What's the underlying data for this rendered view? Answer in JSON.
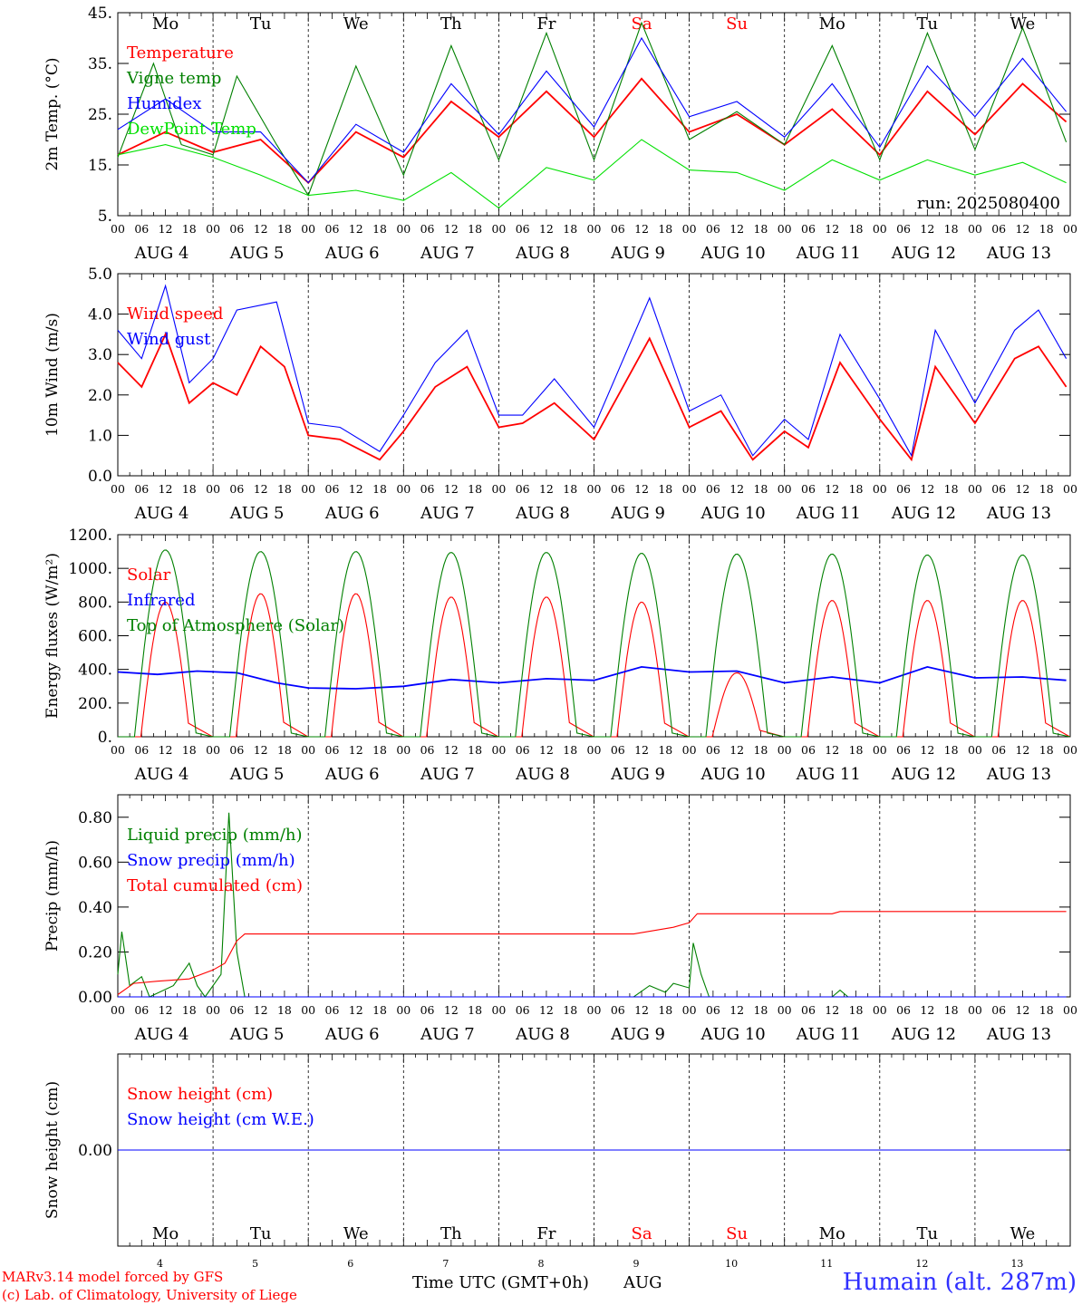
{
  "footer": {
    "model": "MARv3.14 model forced by GFS",
    "copyright": "(c) Lab. of Climatology, University of Liege",
    "time_axis": "Time UTC (GMT+0h)",
    "month": "AUG",
    "station": "Humain (alt. 287m)"
  },
  "colors": {
    "red": "#ff0000",
    "blue": "#0000ff",
    "green": "#008000",
    "lightgreen": "#00e000"
  },
  "hour_labels": [
    "00",
    "06",
    "12",
    "18"
  ],
  "date_labels": [
    "AUG  4",
    "AUG  5",
    "AUG  6",
    "AUG  7",
    "AUG  8",
    "AUG  9",
    "AUG 10",
    "AUG 11",
    "AUG 12",
    "AUG 13"
  ],
  "day_numbers": [
    "4",
    "5",
    "6",
    "7",
    "8",
    "9",
    "10",
    "11",
    "12",
    "13"
  ],
  "weekdays": [
    {
      "label": "Mo",
      "weekend": false
    },
    {
      "label": "Tu",
      "weekend": false
    },
    {
      "label": "We",
      "weekend": false
    },
    {
      "label": "Th",
      "weekend": false
    },
    {
      "label": "Fr",
      "weekend": false
    },
    {
      "label": "Sa",
      "weekend": true
    },
    {
      "label": "Su",
      "weekend": true
    },
    {
      "label": "Mo",
      "weekend": false
    },
    {
      "label": "Tu",
      "weekend": false
    },
    {
      "label": "We",
      "weekend": false
    }
  ],
  "chart_data": [
    {
      "type": "line",
      "ylabel": "2m Temp. (°C)",
      "ylim": [
        5,
        45
      ],
      "yticks": [
        "5.",
        "15.",
        "25.",
        "35.",
        "45."
      ],
      "yvals": [
        5,
        15,
        25,
        35,
        45
      ],
      "annotation": "run: 2025080400",
      "series": [
        {
          "name": "Temperature",
          "color": "#ff0000",
          "points": [
            [
              0,
              17
            ],
            [
              12,
              21.5
            ],
            [
              24,
              17.5
            ],
            [
              36,
              20
            ],
            [
              48,
              11.5
            ],
            [
              60,
              21.5
            ],
            [
              72,
              16.5
            ],
            [
              84,
              27.5
            ],
            [
              96,
              20.5
            ],
            [
              108,
              29.5
            ],
            [
              120,
              20.5
            ],
            [
              132,
              32
            ],
            [
              144,
              21.5
            ],
            [
              156,
              25
            ],
            [
              168,
              19
            ],
            [
              180,
              26
            ],
            [
              192,
              17
            ],
            [
              204,
              29.5
            ],
            [
              216,
              21
            ],
            [
              228,
              31
            ],
            [
              239,
              23.5
            ]
          ]
        },
        {
          "name": "Vigne temp",
          "color": "#008000",
          "points": [
            [
              0,
              16.5
            ],
            [
              9,
              35
            ],
            [
              16,
              19
            ],
            [
              24,
              17
            ],
            [
              30,
              32.5
            ],
            [
              40,
              19
            ],
            [
              48,
              9
            ],
            [
              60,
              34.5
            ],
            [
              72,
              13
            ],
            [
              84,
              38.5
            ],
            [
              96,
              16
            ],
            [
              108,
              41
            ],
            [
              120,
              16
            ],
            [
              132,
              43
            ],
            [
              144,
              20
            ],
            [
              156,
              25.5
            ],
            [
              168,
              19
            ],
            [
              180,
              38.5
            ],
            [
              192,
              16
            ],
            [
              204,
              41
            ],
            [
              216,
              18
            ],
            [
              228,
              42
            ],
            [
              239,
              19.5
            ]
          ]
        },
        {
          "name": "Humidex",
          "color": "#0000ff",
          "points": [
            [
              0,
              22
            ],
            [
              12,
              28
            ],
            [
              24,
              21.5
            ],
            [
              36,
              21.5
            ],
            [
              48,
              11.5
            ],
            [
              60,
              23
            ],
            [
              72,
              17.5
            ],
            [
              84,
              31
            ],
            [
              96,
              21
            ],
            [
              108,
              33.5
            ],
            [
              120,
              22.5
            ],
            [
              132,
              40
            ],
            [
              144,
              24.5
            ],
            [
              156,
              27.5
            ],
            [
              168,
              20.5
            ],
            [
              180,
              31
            ],
            [
              192,
              18.5
            ],
            [
              204,
              34.5
            ],
            [
              216,
              24.5
            ],
            [
              228,
              36
            ],
            [
              239,
              25.5
            ]
          ]
        },
        {
          "name": "DewPoint Temp",
          "color": "#00e000",
          "points": [
            [
              0,
              17
            ],
            [
              12,
              19
            ],
            [
              24,
              16.5
            ],
            [
              36,
              13
            ],
            [
              48,
              9
            ],
            [
              60,
              10
            ],
            [
              72,
              8
            ],
            [
              84,
              13.5
            ],
            [
              96,
              6.5
            ],
            [
              108,
              14.5
            ],
            [
              120,
              12
            ],
            [
              132,
              20
            ],
            [
              144,
              14
            ],
            [
              156,
              13.5
            ],
            [
              168,
              10
            ],
            [
              180,
              16
            ],
            [
              192,
              12
            ],
            [
              204,
              16
            ],
            [
              216,
              13
            ],
            [
              228,
              15.5
            ],
            [
              239,
              11.5
            ]
          ]
        }
      ]
    },
    {
      "type": "line",
      "ylabel": "10m Wind (m/s)",
      "ylim": [
        0,
        5
      ],
      "yticks": [
        "0.0",
        "1.0",
        "2.0",
        "3.0",
        "4.0",
        "5.0"
      ],
      "yvals": [
        0,
        1,
        2,
        3,
        4,
        5
      ],
      "series": [
        {
          "name": "Wind speed",
          "color": "#ff0000",
          "points": [
            [
              0,
              2.8
            ],
            [
              6,
              2.2
            ],
            [
              12,
              3.5
            ],
            [
              18,
              1.8
            ],
            [
              24,
              2.3
            ],
            [
              30,
              2
            ],
            [
              36,
              3.2
            ],
            [
              42,
              2.7
            ],
            [
              48,
              1
            ],
            [
              56,
              0.9
            ],
            [
              66,
              0.4
            ],
            [
              72,
              1.1
            ],
            [
              80,
              2.2
            ],
            [
              88,
              2.7
            ],
            [
              96,
              1.2
            ],
            [
              102,
              1.3
            ],
            [
              110,
              1.8
            ],
            [
              120,
              0.9
            ],
            [
              134,
              3.4
            ],
            [
              144,
              1.2
            ],
            [
              152,
              1.6
            ],
            [
              160,
              0.4
            ],
            [
              168,
              1.1
            ],
            [
              174,
              0.7
            ],
            [
              182,
              2.8
            ],
            [
              192,
              1.4
            ],
            [
              200,
              0.4
            ],
            [
              206,
              2.7
            ],
            [
              216,
              1.3
            ],
            [
              226,
              2.9
            ],
            [
              232,
              3.2
            ],
            [
              239,
              2.2
            ]
          ]
        },
        {
          "name": "Wind gust",
          "color": "#0000ff",
          "points": [
            [
              0,
              3.6
            ],
            [
              6,
              2.9
            ],
            [
              12,
              4.7
            ],
            [
              18,
              2.3
            ],
            [
              24,
              2.9
            ],
            [
              30,
              4.1
            ],
            [
              40,
              4.3
            ],
            [
              48,
              1.3
            ],
            [
              56,
              1.2
            ],
            [
              66,
              0.6
            ],
            [
              72,
              1.5
            ],
            [
              80,
              2.8
            ],
            [
              88,
              3.6
            ],
            [
              96,
              1.5
            ],
            [
              102,
              1.5
            ],
            [
              110,
              2.4
            ],
            [
              120,
              1.2
            ],
            [
              134,
              4.4
            ],
            [
              144,
              1.6
            ],
            [
              152,
              2
            ],
            [
              160,
              0.5
            ],
            [
              168,
              1.4
            ],
            [
              174,
              0.9
            ],
            [
              182,
              3.5
            ],
            [
              192,
              1.9
            ],
            [
              200,
              0.5
            ],
            [
              206,
              3.6
            ],
            [
              216,
              1.8
            ],
            [
              226,
              3.6
            ],
            [
              232,
              4.1
            ],
            [
              239,
              2.9
            ]
          ]
        }
      ]
    },
    {
      "type": "line",
      "ylabel": "Energy fluxes (W/m²)",
      "ylim": [
        0,
        1200
      ],
      "yticks": [
        "0.",
        "200.",
        "400.",
        "600.",
        "800.",
        "1000.",
        "1200."
      ],
      "yvals": [
        0,
        200,
        400,
        600,
        800,
        1000,
        1200
      ],
      "series": [
        {
          "name": "Solar",
          "color": "#ff0000",
          "daily_peak": [
            800,
            850,
            850,
            830,
            830,
            800,
            380,
            810,
            810,
            810
          ]
        },
        {
          "name": "Infrared",
          "color": "#0000ff",
          "points": [
            [
              0,
              385
            ],
            [
              10,
              370
            ],
            [
              20,
              390
            ],
            [
              30,
              380
            ],
            [
              40,
              320
            ],
            [
              48,
              290
            ],
            [
              60,
              285
            ],
            [
              72,
              300
            ],
            [
              84,
              340
            ],
            [
              96,
              320
            ],
            [
              108,
              345
            ],
            [
              120,
              335
            ],
            [
              132,
              415
            ],
            [
              144,
              385
            ],
            [
              156,
              390
            ],
            [
              168,
              320
            ],
            [
              180,
              355
            ],
            [
              192,
              320
            ],
            [
              204,
              415
            ],
            [
              216,
              350
            ],
            [
              228,
              355
            ],
            [
              239,
              335
            ]
          ]
        },
        {
          "name": "Top of Atmosphere (Solar)",
          "color": "#008000",
          "daily_peak": [
            1110,
            1100,
            1100,
            1095,
            1095,
            1090,
            1085,
            1085,
            1080,
            1080
          ]
        }
      ]
    },
    {
      "type": "line",
      "ylabel": "Precip (mm/h)",
      "ylim": [
        0,
        0.9
      ],
      "yticks": [
        "0.00",
        "0.20",
        "0.40",
        "0.60",
        "0.80"
      ],
      "yvals": [
        0,
        0.2,
        0.4,
        0.6,
        0.8
      ],
      "series": [
        {
          "name": "Liquid precip (mm/h)",
          "color": "#008000",
          "points": [
            [
              0,
              0.1
            ],
            [
              1,
              0.29
            ],
            [
              3,
              0.05
            ],
            [
              6,
              0.09
            ],
            [
              8,
              0
            ],
            [
              14,
              0.05
            ],
            [
              18,
              0.15
            ],
            [
              20,
              0.05
            ],
            [
              22,
              0
            ],
            [
              26,
              0.1
            ],
            [
              28,
              0.82
            ],
            [
              30,
              0.2
            ],
            [
              32,
              0
            ],
            [
              130,
              0
            ],
            [
              134,
              0.05
            ],
            [
              138,
              0.02
            ],
            [
              140,
              0.06
            ],
            [
              144,
              0.04
            ],
            [
              145,
              0.24
            ],
            [
              147,
              0.1
            ],
            [
              149,
              0
            ],
            [
              180,
              0
            ],
            [
              182,
              0.03
            ],
            [
              184,
              0
            ],
            [
              239,
              0
            ]
          ]
        },
        {
          "name": "Snow precip (mm/h)",
          "color": "#0000ff",
          "points": [
            [
              0,
              0
            ],
            [
              239,
              0
            ]
          ]
        },
        {
          "name": "Total cumulated (cm)",
          "color": "#ff0000",
          "points": [
            [
              0,
              0.01
            ],
            [
              4,
              0.06
            ],
            [
              10,
              0.07
            ],
            [
              18,
              0.08
            ],
            [
              24,
              0.12
            ],
            [
              27,
              0.15
            ],
            [
              30,
              0.25
            ],
            [
              32,
              0.28
            ],
            [
              130,
              0.28
            ],
            [
              140,
              0.31
            ],
            [
              144,
              0.33
            ],
            [
              146,
              0.37
            ],
            [
              180,
              0.37
            ],
            [
              182,
              0.38
            ],
            [
              239,
              0.38
            ]
          ]
        }
      ]
    },
    {
      "type": "line",
      "ylabel": "Snow height (cm)",
      "ylim": [
        -1,
        1
      ],
      "yticks": [
        "0.00"
      ],
      "yvals": [
        0
      ],
      "series": [
        {
          "name": "Snow height (cm)",
          "color": "#ff0000",
          "points": [
            [
              0,
              0
            ],
            [
              239,
              0
            ]
          ]
        },
        {
          "name": "Snow height (cm W.E.)",
          "color": "#0000ff",
          "points": [
            [
              0,
              0
            ],
            [
              239,
              0
            ]
          ]
        }
      ]
    }
  ]
}
